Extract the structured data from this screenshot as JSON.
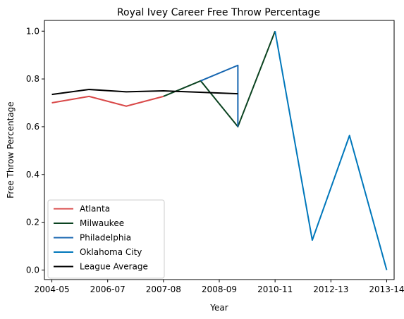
{
  "chart_data": {
    "type": "line",
    "title": "Royal Ivey Career Free Throw Percentage",
    "xlabel": "Year",
    "ylabel": "Free Throw Percentage",
    "x_ticks": [
      "2004-05",
      "2006-07",
      "2007-08",
      "2008-09",
      "2010-11",
      "2012-13",
      "2013-14"
    ],
    "xlim": [
      2004.8,
      2014.2
    ],
    "ylim": [
      -0.04,
      1.045
    ],
    "y_ticks": [
      0.0,
      0.2,
      0.4,
      0.6,
      0.8,
      1.0
    ],
    "y_tick_labels": [
      "0.0",
      "0.2",
      "0.4",
      "0.6",
      "0.8",
      "1.0"
    ],
    "grid": false,
    "legend_position": "lower-left",
    "series": [
      {
        "name": "Atlanta",
        "color": "#d94848",
        "points": [
          [
            2005,
            0.7
          ],
          [
            2006,
            0.727
          ],
          [
            2007,
            0.686
          ],
          [
            2008,
            0.727
          ]
        ]
      },
      {
        "name": "Milwaukee",
        "color": "#0b4320",
        "points": [
          [
            2008,
            0.727
          ],
          [
            2009,
            0.792
          ],
          [
            2010,
            0.6
          ],
          [
            2011,
            1.0
          ]
        ]
      },
      {
        "name": "Philadelphia",
        "color": "#1565b0",
        "points": [
          [
            2009,
            0.792
          ],
          [
            2010,
            0.857
          ],
          [
            2010,
            0.6
          ]
        ]
      },
      {
        "name": "Oklahoma City",
        "color": "#0077bb",
        "points": [
          [
            2011,
            1.0
          ],
          [
            2012,
            0.125
          ],
          [
            2013,
            0.563
          ],
          [
            2014,
            0.0
          ]
        ]
      },
      {
        "name": "League Average",
        "color": "#000000",
        "points": [
          [
            2005,
            0.735
          ],
          [
            2006,
            0.756
          ],
          [
            2007,
            0.746
          ],
          [
            2008,
            0.75
          ],
          [
            2010,
            0.738
          ]
        ]
      }
    ]
  }
}
